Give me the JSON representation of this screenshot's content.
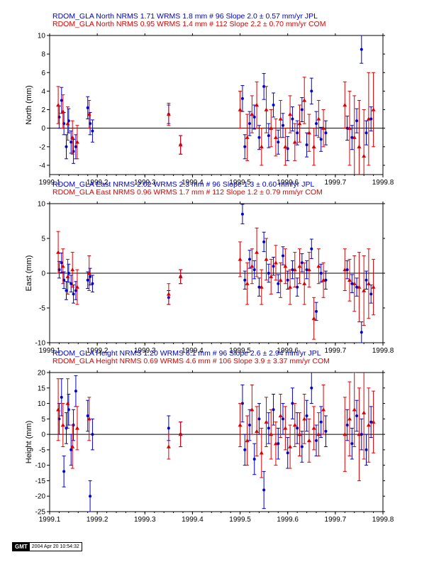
{
  "colors": {
    "jpl": "#0000cc",
    "com": "#dd0000",
    "axis": "#000000",
    "zero_line": "#000000"
  },
  "stamp": {
    "logo": "GMT",
    "timestamp": "2004 Apr 20 10:54:32"
  },
  "chart_data": [
    {
      "type": "scatter",
      "component": "north",
      "title_lines": [
        "RDOM_GLA North NRMS 1.71 WRMS  1.8 mm # 96 Slope    2.0 ±  0.57 mm/yr JPL",
        "RDOM_GLA North NRMS 0.95 WRMS  1.4 mm # 112 Slope    2.2 ±  0.70 mm/yr COM"
      ],
      "ylabel": "North (mm)",
      "xlim": [
        1999.1,
        1999.8
      ],
      "ylim": [
        -5,
        10
      ],
      "xticks": [
        1999.1,
        1999.2,
        1999.3,
        1999.4,
        1999.5,
        1999.6,
        1999.7,
        1999.8
      ],
      "xtick_labels": [
        "1999.1",
        "1999.2",
        "1999.3",
        "1999.4",
        "1999.5",
        "1999.6",
        "1999.7",
        "1999.8"
      ],
      "yticks": [
        -4,
        -2,
        0,
        2,
        4,
        6,
        8,
        10
      ],
      "ytick_labels": [
        "-4",
        "-2",
        "0",
        "2",
        "4",
        "6",
        "8",
        "10"
      ],
      "series": [
        {
          "name": "JPL",
          "marker": "circle",
          "x": [
            1999.12,
            1999.125,
            1999.13,
            1999.135,
            1999.14,
            1999.145,
            1999.15,
            1999.155,
            1999.18,
            1999.185,
            1999.19,
            1999.35,
            1999.375,
            1999.505,
            1999.51,
            1999.52,
            1999.53,
            1999.54,
            1999.55,
            1999.56,
            1999.57,
            1999.58,
            1999.59,
            1999.6,
            1999.61,
            1999.62,
            1999.63,
            1999.64,
            1999.65,
            1999.66,
            1999.67,
            1999.68,
            1999.725,
            1999.735,
            1999.745,
            1999.755,
            1999.765,
            1999.775
          ],
          "y": [
            1.2,
            3.0,
            0.5,
            -2.0,
            0.8,
            -1.5,
            -2.5,
            -2.0,
            2.2,
            0.5,
            -0.3,
            1.5,
            -1.8,
            3.2,
            -2.0,
            0.5,
            1.2,
            -1.0,
            4.5,
            -0.8,
            2.5,
            -1.5,
            0.3,
            -2.2,
            1.0,
            -0.5,
            2.0,
            -1.8,
            4.0,
            0.5,
            -1.2,
            -0.5,
            0.0,
            -1.0,
            0.8,
            8.5,
            -0.5,
            1.0
          ],
          "err": [
            1.2,
            1.4,
            1.2,
            1.3,
            1.3,
            1.2,
            1.3,
            1.3,
            1.2,
            1.2,
            1.2,
            1.0,
            1.0,
            1.4,
            1.3,
            1.3,
            1.3,
            1.3,
            1.4,
            1.3,
            1.3,
            1.3,
            1.3,
            1.3,
            1.3,
            1.3,
            1.3,
            1.3,
            1.4,
            1.3,
            1.3,
            1.3,
            1.3,
            1.3,
            1.3,
            1.5,
            1.3,
            1.3
          ]
        },
        {
          "name": "COM",
          "marker": "triangle",
          "x": [
            1999.118,
            1999.128,
            1999.138,
            1999.148,
            1999.158,
            1999.183,
            1999.35,
            1999.375,
            1999.5,
            1999.515,
            1999.525,
            1999.535,
            1999.545,
            1999.555,
            1999.565,
            1999.575,
            1999.585,
            1999.595,
            1999.605,
            1999.615,
            1999.625,
            1999.635,
            1999.645,
            1999.655,
            1999.665,
            1999.675,
            1999.72,
            1999.73,
            1999.74,
            1999.75,
            1999.76,
            1999.77,
            1999.78
          ],
          "y": [
            2.5,
            1.8,
            0.5,
            -1.0,
            -1.5,
            1.5,
            1.5,
            -1.8,
            2.0,
            -1.0,
            1.5,
            2.5,
            -2.0,
            2.0,
            0.0,
            -1.0,
            1.0,
            -2.0,
            1.5,
            -1.5,
            0.5,
            3.0,
            -0.5,
            -2.0,
            1.0,
            0.0,
            2.5,
            0.0,
            -1.0,
            -2.0,
            -3.0,
            1.0,
            2.0
          ],
          "err": [
            2.0,
            1.8,
            1.8,
            1.8,
            1.8,
            1.5,
            1.2,
            1.0,
            2.0,
            2.5,
            2.0,
            2.5,
            2.0,
            2.5,
            2.0,
            2.0,
            2.0,
            2.0,
            2.0,
            2.0,
            2.0,
            2.5,
            2.0,
            2.0,
            2.0,
            2.0,
            2.5,
            4.0,
            4.5,
            5.0,
            5.0,
            5.0,
            4.0
          ]
        }
      ]
    },
    {
      "type": "scatter",
      "component": "east",
      "title_lines": [
        "RDOM_GLA East NRMS 2.02 WRMS  2.3 mm # 96 Slope    1.3 ±  0.60 mm/yr JPL",
        "RDOM_GLA East NRMS 0.96 WRMS  1.7 mm # 112 Slope    1.2 ±  0.79 mm/yr COM"
      ],
      "ylabel": "East (mm)",
      "xlim": [
        1999.1,
        1999.8
      ],
      "ylim": [
        -10,
        10
      ],
      "xticks": [
        1999.1,
        1999.2,
        1999.3,
        1999.4,
        1999.5,
        1999.6,
        1999.7,
        1999.8
      ],
      "xtick_labels": [
        "1999.1",
        "1999.2",
        "1999.3",
        "1999.4",
        "1999.5",
        "1999.6",
        "1999.7",
        "1999.8"
      ],
      "yticks": [
        -10,
        -5,
        0,
        5,
        10
      ],
      "ytick_labels": [
        "-10",
        "-5",
        "0",
        "5",
        "10"
      ],
      "series": [
        {
          "name": "JPL",
          "marker": "circle",
          "x": [
            1999.12,
            1999.125,
            1999.13,
            1999.135,
            1999.14,
            1999.145,
            1999.15,
            1999.155,
            1999.18,
            1999.185,
            1999.19,
            1999.35,
            1999.375,
            1999.505,
            1999.51,
            1999.52,
            1999.53,
            1999.54,
            1999.55,
            1999.56,
            1999.57,
            1999.58,
            1999.59,
            1999.6,
            1999.61,
            1999.62,
            1999.63,
            1999.64,
            1999.65,
            1999.66,
            1999.67,
            1999.68,
            1999.725,
            1999.735,
            1999.745,
            1999.755,
            1999.765,
            1999.775
          ],
          "y": [
            0.5,
            1.5,
            -1.0,
            -2.5,
            0.0,
            -1.5,
            -3.0,
            -2.5,
            -1.0,
            -0.5,
            -1.5,
            -3.5,
            -0.5,
            8.5,
            -1.0,
            2.0,
            0.5,
            -2.0,
            4.5,
            0.0,
            1.0,
            -1.5,
            2.5,
            -1.0,
            0.5,
            -2.0,
            1.5,
            0.5,
            3.5,
            -5.5,
            0.0,
            -1.0,
            0.5,
            -1.5,
            -2.0,
            -8.5,
            -1.0,
            -3.0
          ],
          "err": [
            1.2,
            1.4,
            1.2,
            1.3,
            1.3,
            1.2,
            1.3,
            1.3,
            1.2,
            1.2,
            1.2,
            1.0,
            1.0,
            1.4,
            1.3,
            1.3,
            1.3,
            1.3,
            1.4,
            1.3,
            1.3,
            1.3,
            1.3,
            1.3,
            1.3,
            1.3,
            1.3,
            1.3,
            1.4,
            1.3,
            1.3,
            1.3,
            1.3,
            1.3,
            1.3,
            1.5,
            1.3,
            1.3
          ]
        },
        {
          "name": "COM",
          "marker": "triangle",
          "x": [
            1999.118,
            1999.128,
            1999.138,
            1999.148,
            1999.158,
            1999.183,
            1999.35,
            1999.375,
            1999.5,
            1999.515,
            1999.525,
            1999.535,
            1999.545,
            1999.555,
            1999.565,
            1999.575,
            1999.585,
            1999.595,
            1999.605,
            1999.615,
            1999.625,
            1999.635,
            1999.645,
            1999.655,
            1999.665,
            1999.675,
            1999.72,
            1999.73,
            1999.74,
            1999.75,
            1999.76,
            1999.77,
            1999.78
          ],
          "y": [
            3.0,
            1.0,
            -0.5,
            0.5,
            -2.0,
            0.0,
            -3.0,
            -0.5,
            2.0,
            -1.5,
            1.0,
            3.0,
            -2.0,
            2.0,
            -0.5,
            1.5,
            -1.0,
            1.0,
            -2.0,
            0.5,
            1.0,
            -1.5,
            0.5,
            -6.5,
            1.0,
            -1.0,
            0.5,
            -1.0,
            -1.5,
            -2.0,
            -2.5,
            -1.5,
            -2.0
          ],
          "err": [
            3.0,
            2.5,
            2.5,
            2.5,
            2.5,
            2.5,
            1.5,
            1.0,
            2.5,
            3.0,
            2.5,
            3.5,
            2.5,
            3.0,
            2.5,
            2.5,
            2.5,
            2.5,
            2.5,
            2.5,
            2.5,
            3.0,
            2.5,
            3.0,
            2.5,
            2.5,
            3.0,
            3.0,
            4.0,
            5.0,
            5.0,
            5.0,
            4.0
          ]
        }
      ]
    },
    {
      "type": "scatter",
      "component": "height",
      "title_lines": [
        "RDOM_GLA Height NRMS 1.20 WRMS  6.1 mm # 96 Slope    2.6 ±  2.94 mm/yr JPL",
        "RDOM_GLA Height NRMS 0.69 WRMS  4.6 mm # 106 Slope    3.9 ±  3.37 mm/yr COM"
      ],
      "ylabel": "Height (mm)",
      "xlim": [
        1999.1,
        1999.8
      ],
      "ylim": [
        -25,
        20
      ],
      "xticks": [
        1999.1,
        1999.2,
        1999.3,
        1999.4,
        1999.5,
        1999.6,
        1999.7,
        1999.8
      ],
      "xtick_labels": [
        "1999.1",
        "1999.2",
        "1999.3",
        "1999.4",
        "1999.5",
        "1999.6",
        "1999.7",
        "1999.8"
      ],
      "yticks": [
        -25,
        -20,
        -15,
        -10,
        -5,
        0,
        5,
        10,
        15,
        20
      ],
      "ytick_labels": [
        "-25",
        "-20",
        "-15",
        "-10",
        "-5",
        "0",
        "5",
        "10",
        "15",
        "20"
      ],
      "series": [
        {
          "name": "JPL",
          "marker": "circle",
          "x": [
            1999.12,
            1999.125,
            1999.13,
            1999.135,
            1999.14,
            1999.145,
            1999.15,
            1999.155,
            1999.18,
            1999.185,
            1999.19,
            1999.35,
            1999.375,
            1999.505,
            1999.51,
            1999.52,
            1999.53,
            1999.54,
            1999.55,
            1999.56,
            1999.57,
            1999.58,
            1999.59,
            1999.6,
            1999.61,
            1999.62,
            1999.63,
            1999.64,
            1999.65,
            1999.66,
            1999.67,
            1999.68,
            1999.725,
            1999.735,
            1999.745,
            1999.755,
            1999.765,
            1999.775
          ],
          "y": [
            5.0,
            12.0,
            -12.0,
            2.0,
            8.0,
            -5.0,
            3.0,
            14.0,
            6.0,
            -20.0,
            0.0,
            2.0,
            0.0,
            10.0,
            -5.0,
            3.0,
            -8.0,
            5.0,
            -18.0,
            2.0,
            8.0,
            -3.0,
            5.0,
            -6.0,
            10.0,
            2.0,
            -4.0,
            6.0,
            15.0,
            -2.0,
            4.0,
            1.0,
            3.0,
            -3.0,
            6.0,
            0.0,
            -5.0,
            4.0
          ],
          "err": [
            5.0,
            6.0,
            5.0,
            5.0,
            5.0,
            5.0,
            5.0,
            5.0,
            5.0,
            5.0,
            5.0,
            4.0,
            4.0,
            6.0,
            5.0,
            5.0,
            5.0,
            5.0,
            6.0,
            5.0,
            5.0,
            5.0,
            5.0,
            5.0,
            5.0,
            5.0,
            5.0,
            5.0,
            5.0,
            5.0,
            5.0,
            5.0,
            5.0,
            5.0,
            5.0,
            5.0,
            5.0,
            5.0
          ]
        },
        {
          "name": "COM",
          "marker": "triangle",
          "x": [
            1999.118,
            1999.128,
            1999.138,
            1999.148,
            1999.158,
            1999.183,
            1999.35,
            1999.375,
            1999.5,
            1999.515,
            1999.525,
            1999.535,
            1999.545,
            1999.555,
            1999.565,
            1999.575,
            1999.585,
            1999.595,
            1999.605,
            1999.615,
            1999.625,
            1999.635,
            1999.645,
            1999.655,
            1999.665,
            1999.675,
            1999.72,
            1999.73,
            1999.74,
            1999.75,
            1999.76,
            1999.77,
            1999.78
          ],
          "y": [
            8.0,
            3.0,
            10.0,
            -4.0,
            2.0,
            5.0,
            -4.0,
            0.0,
            3.0,
            -2.0,
            8.0,
            1.0,
            -6.0,
            4.0,
            0.0,
            -3.0,
            6.0,
            2.0,
            -4.0,
            3.0,
            0.0,
            5.0,
            -2.0,
            2.0,
            0.0,
            8.0,
            0.0,
            5.0,
            8.0,
            0.0,
            7.0,
            3.0,
            4.0
          ],
          "err": [
            10.0,
            7.0,
            8.0,
            7.0,
            7.0,
            7.0,
            4.0,
            4.0,
            7.0,
            8.0,
            8.0,
            8.0,
            8.0,
            8.0,
            8.0,
            7.0,
            7.0,
            7.0,
            7.0,
            7.0,
            7.0,
            8.0,
            7.0,
            7.0,
            7.0,
            8.0,
            12.0,
            12.0,
            12.0,
            15.0,
            15.0,
            12.0,
            10.0
          ]
        }
      ]
    }
  ]
}
